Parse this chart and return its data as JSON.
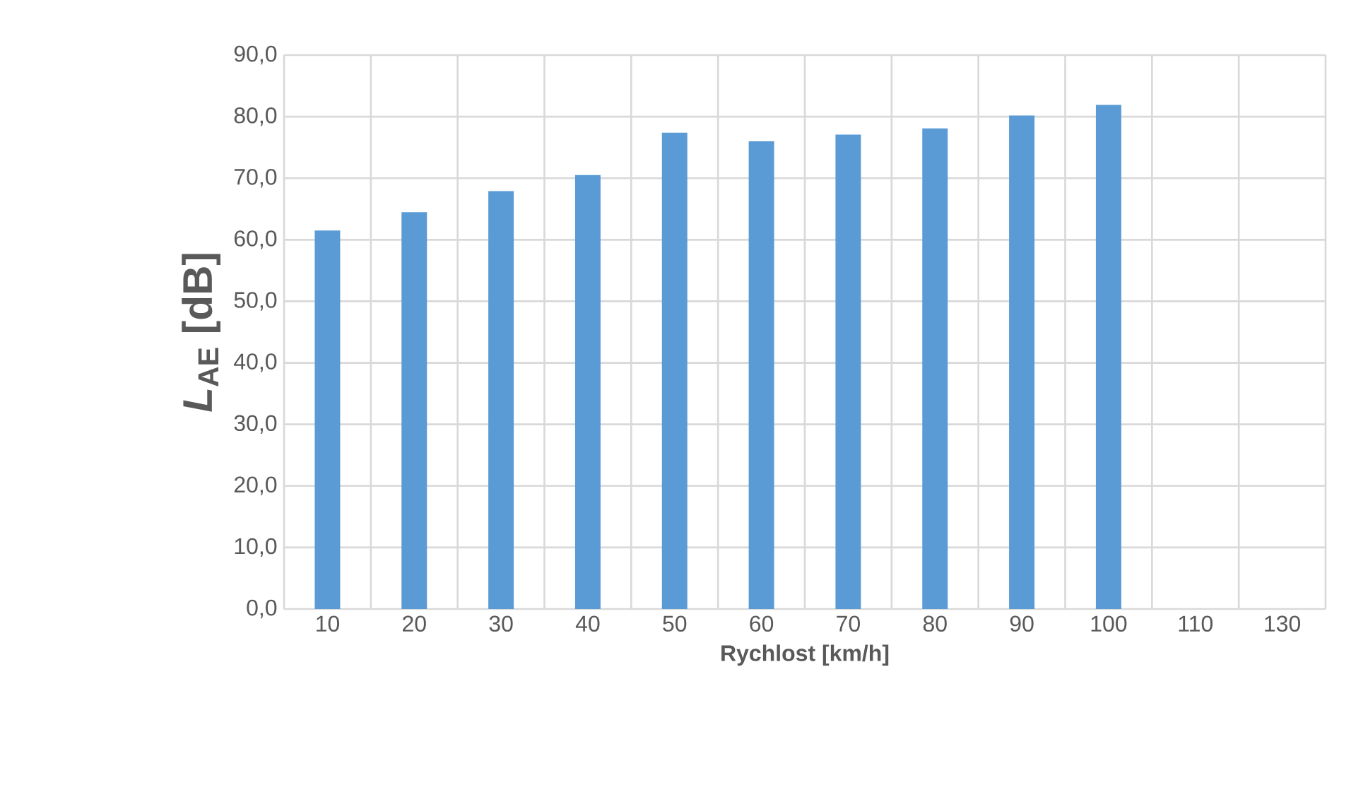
{
  "chart_data": {
    "type": "bar",
    "xlabel": "Rychlost [km/h]",
    "ylabel": "*L*$_{AE}$ [dB]",
    "categories": [
      "10",
      "20",
      "30",
      "40",
      "50",
      "60",
      "70",
      "80",
      "90",
      "100",
      "110",
      "130"
    ],
    "values": [
      61.5,
      64.5,
      67.9,
      70.5,
      77.4,
      76.0,
      77.1,
      78.1,
      80.2,
      81.9,
      null,
      null
    ],
    "color": "#5b9bd5",
    "ylim": [
      0,
      90
    ],
    "yticks": [
      {
        "value": 0,
        "label": "0,0"
      },
      {
        "value": 10,
        "label": "10,0"
      },
      {
        "value": 20,
        "label": "20,0"
      },
      {
        "value": 30,
        "label": "30,0"
      },
      {
        "value": 40,
        "label": "40,0"
      },
      {
        "value": 50,
        "label": "50,0"
      },
      {
        "value": 60,
        "label": "60,0"
      },
      {
        "value": 70,
        "label": "70,0"
      },
      {
        "value": 80,
        "label": "80,0"
      },
      {
        "value": 90,
        "label": "90,0"
      }
    ],
    "grid": true
  }
}
